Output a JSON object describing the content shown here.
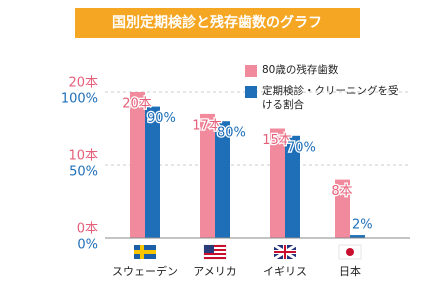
{
  "chart_data": {
    "type": "bar",
    "title": "国別定期検診と残存歯数のグラフ",
    "categories": [
      "スウェーデン",
      "アメリカ",
      "イギリス",
      "日本"
    ],
    "series": [
      {
        "name": "80歳の残存歯数",
        "color": "#f08a9c",
        "values": [
          20,
          17,
          15,
          8
        ],
        "value_labels": [
          "20本",
          "17本",
          "15本",
          "8本"
        ]
      },
      {
        "name": "定期検診・クリーニングを受ける割合",
        "color": "#1f6fb8",
        "axis": "y2",
        "values": [
          90,
          80,
          70,
          2
        ],
        "value_labels": [
          "90%",
          "80%",
          "70%",
          "2%"
        ]
      }
    ],
    "ylim": [
      0,
      20
    ],
    "yticks": [
      {
        "value": 0,
        "label": "0本"
      },
      {
        "value": 10,
        "label": "10本"
      },
      {
        "value": 20,
        "label": "20本"
      }
    ],
    "y2lim": [
      0,
      100
    ],
    "y2ticks": [
      {
        "value": 0,
        "label": "0%"
      },
      {
        "value": 50,
        "label": "50%"
      },
      {
        "value": 100,
        "label": "100%"
      }
    ],
    "grid": true
  }
}
